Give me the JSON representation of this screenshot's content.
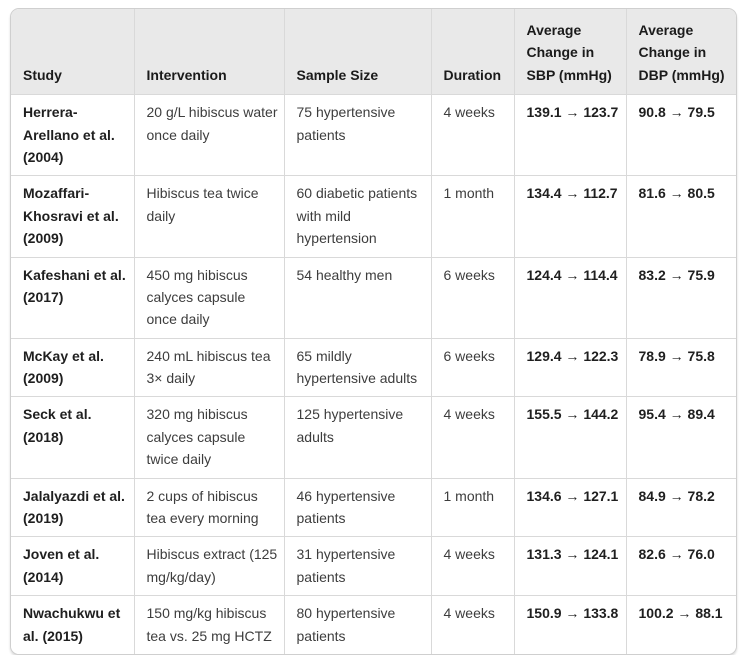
{
  "colors": {
    "header_background": "#e9e9e9",
    "grid_border": "#d9d9d9",
    "outer_border": "#cfcfcf",
    "body_text": "#3d3d3d",
    "bold_text": "#1f1f1f",
    "page_background": "#ffffff"
  },
  "table": {
    "columns": [
      {
        "key": "study",
        "label": "Study"
      },
      {
        "key": "intervention",
        "label": "Intervention"
      },
      {
        "key": "sample_size",
        "label": "Sample Size"
      },
      {
        "key": "duration",
        "label": "Duration"
      },
      {
        "key": "sbp",
        "label": "Average Change in SBP (mmHg)"
      },
      {
        "key": "dbp",
        "label": "Average Change in DBP (mmHg)"
      }
    ],
    "rows": [
      {
        "study": "Herrera-Arellano et al. (2004)",
        "intervention": "20 g/L hibiscus water once daily",
        "sample_size": "75 hypertensive patients",
        "duration": "4 weeks",
        "sbp": "139.1 → 123.7",
        "dbp": "90.8 → 79.5"
      },
      {
        "study": "Mozaffari-Khosravi et al. (2009)",
        "intervention": "Hibiscus tea twice daily",
        "sample_size": "60 diabetic patients with mild hypertension",
        "duration": "1 month",
        "sbp": "134.4 → 112.7",
        "dbp": "81.6 → 80.5"
      },
      {
        "study": "Kafeshani et al. (2017)",
        "intervention": "450 mg hibiscus calyces capsule once daily",
        "sample_size": "54 healthy men",
        "duration": "6 weeks",
        "sbp": "124.4 → 114.4",
        "dbp": "83.2 → 75.9"
      },
      {
        "study": "McKay et al. (2009)",
        "intervention": "240 mL hibiscus tea 3× daily",
        "sample_size": "65 mildly hypertensive adults",
        "duration": "6 weeks",
        "sbp": "129.4 → 122.3",
        "dbp": "78.9 → 75.8"
      },
      {
        "study": "Seck et al. (2018)",
        "intervention": "320 mg hibiscus calyces capsule twice daily",
        "sample_size": "125 hypertensive adults",
        "duration": "4 weeks",
        "sbp": "155.5 → 144.2",
        "dbp": "95.4 → 89.4"
      },
      {
        "study": "Jalalyazdi et al. (2019)",
        "intervention": "2 cups of hibiscus tea every morning",
        "sample_size": "46 hypertensive patients",
        "duration": "1 month",
        "sbp": "134.6 → 127.1",
        "dbp": "84.9 → 78.2"
      },
      {
        "study": "Joven et al. (2014)",
        "intervention": "Hibiscus extract (125 mg/kg/day)",
        "sample_size": "31 hypertensive patients",
        "duration": "4 weeks",
        "sbp": "131.3 → 124.1",
        "dbp": "82.6 → 76.0"
      },
      {
        "study": "Nwachukwu et al. (2015)",
        "intervention": "150 mg/kg hibiscus tea vs. 25 mg HCTZ",
        "sample_size": "80 hypertensive patients",
        "duration": "4 weeks",
        "sbp": "150.9 → 133.8",
        "dbp": "100.2 → 88.1"
      }
    ]
  }
}
